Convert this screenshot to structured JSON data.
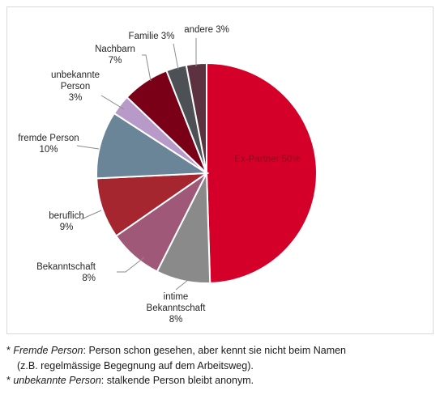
{
  "chart_data": {
    "type": "pie",
    "title": "",
    "slices": [
      {
        "label": "Ex-Partner",
        "value": 50,
        "display": "Ex-Partner 50%",
        "color": "#d4002a",
        "text_lines": [
          "Ex-Partner 50%"
        ]
      },
      {
        "label": "intime Bekanntschaft",
        "value": 8,
        "display": "intime Bekanntschaft 8%",
        "color": "#8a8a8a",
        "text_lines": [
          "intime",
          "Bekanntschaft",
          "8%"
        ]
      },
      {
        "label": "Bekanntschaft",
        "value": 8,
        "display": "Bekanntschaft 8%",
        "color": "#a05878",
        "text_lines": [
          "Bekanntschaft",
          "8%"
        ]
      },
      {
        "label": "beruflich",
        "value": 9,
        "display": "beruflich 9%",
        "color": "#a5262f",
        "text_lines": [
          "beruflich",
          "9%"
        ]
      },
      {
        "label": "fremde Person",
        "value": 10,
        "display": "fremde Person 10%",
        "color": "#6b8598",
        "text_lines": [
          "fremde Person",
          "10%"
        ]
      },
      {
        "label": "unbekannte Person",
        "value": 3,
        "display": "unbekannte Person 3%",
        "color": "#b79ac8",
        "text_lines": [
          "unbekannte",
          "Person",
          "3%"
        ]
      },
      {
        "label": "Nachbarn",
        "value": 7,
        "display": "Nachbarn 7%",
        "color": "#7a0018",
        "text_lines": [
          "Nachbarn",
          "7%"
        ]
      },
      {
        "label": "Familie",
        "value": 3,
        "display": "Familie 3%",
        "color": "#4d5155",
        "text_lines": [
          "Familie 3%"
        ]
      },
      {
        "label": "andere",
        "value": 3,
        "display": "andere 3%",
        "color": "#5c3240",
        "text_lines": [
          "andere 3%"
        ]
      }
    ]
  },
  "footnotes": [
    {
      "marker": "*",
      "term": "Fremde Person",
      "line1": ": Person schon gesehen, aber kennt sie nicht beim Namen",
      "line2": "(z.B. regelmässige Begegnung auf dem Arbeitsweg)."
    },
    {
      "marker": "*",
      "term": "unbekannte Person",
      "line1": ": stalkende Person bleibt anonym."
    }
  ]
}
